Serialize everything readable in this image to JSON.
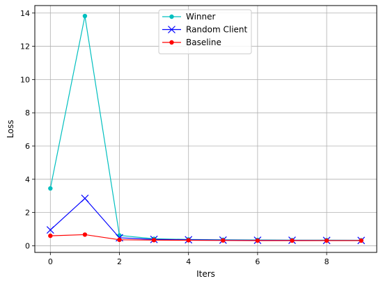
{
  "chart_data": {
    "type": "line",
    "title": "",
    "xlabel": "Iters",
    "ylabel": "Loss",
    "xlim": [
      -0.45,
      9.45
    ],
    "ylim": [
      -0.4,
      14.45
    ],
    "xticks": [
      0,
      2,
      4,
      6,
      8
    ],
    "yticks": [
      0,
      2,
      4,
      6,
      8,
      10,
      12,
      14
    ],
    "grid": true,
    "legend_position": "top-center",
    "series": [
      {
        "name": "Winner",
        "color": "#00bfbf",
        "marker": "circle",
        "x": [
          0,
          1,
          2,
          3,
          4,
          5,
          6,
          7,
          8,
          9
        ],
        "values": [
          3.45,
          13.82,
          0.62,
          0.42,
          0.38,
          0.36,
          0.35,
          0.34,
          0.34,
          0.33
        ]
      },
      {
        "name": "Random Client",
        "color": "#0000ff",
        "marker": "x",
        "x": [
          0,
          1,
          2,
          3,
          4,
          5,
          6,
          7,
          8,
          9
        ],
        "values": [
          0.95,
          2.85,
          0.48,
          0.38,
          0.36,
          0.34,
          0.33,
          0.33,
          0.32,
          0.32
        ]
      },
      {
        "name": "Baseline",
        "color": "#ff0000",
        "marker": "circle",
        "x": [
          0,
          1,
          2,
          3,
          4,
          5,
          6,
          7,
          8,
          9
        ],
        "values": [
          0.6,
          0.67,
          0.36,
          0.34,
          0.33,
          0.32,
          0.31,
          0.31,
          0.31,
          0.31
        ]
      }
    ]
  }
}
